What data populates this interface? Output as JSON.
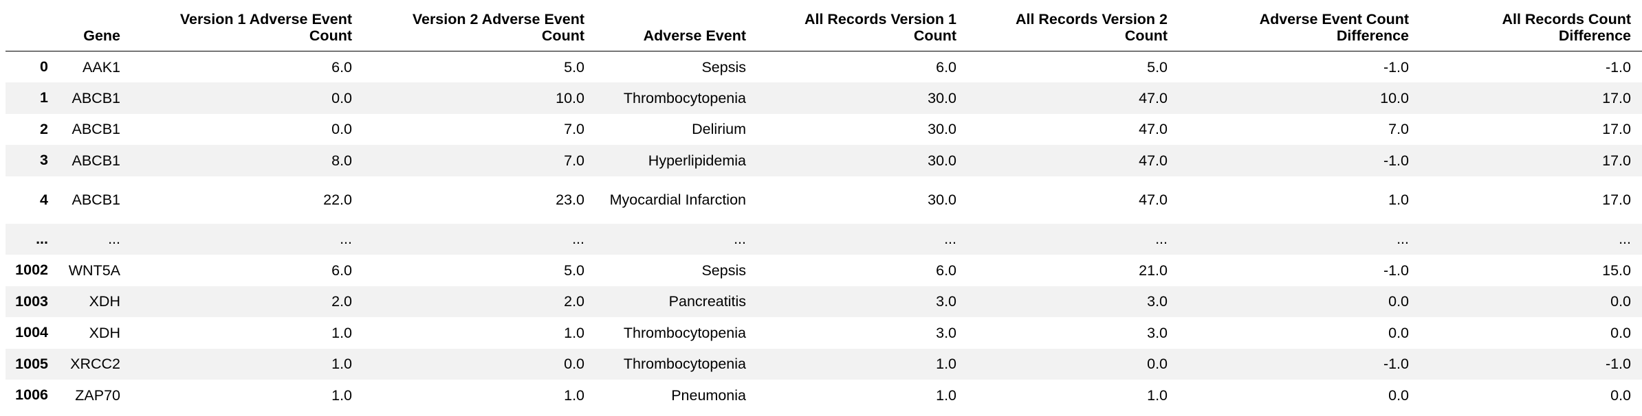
{
  "table": {
    "index_header": "",
    "columns": [
      "Gene",
      "Version 1 Adverse Event Count",
      "Version 2 Adverse Event Count",
      "Adverse Event",
      "All Records Version 1 Count",
      "All Records Version 2 Count",
      "Adverse Event Count Difference",
      "All Records Count Difference"
    ],
    "rows": [
      {
        "index": "0",
        "cells": [
          "AAK1",
          "6.0",
          "5.0",
          "Sepsis",
          "6.0",
          "5.0",
          "-1.0",
          "-1.0"
        ]
      },
      {
        "index": "1",
        "cells": [
          "ABCB1",
          "0.0",
          "10.0",
          "Thrombocytopenia",
          "30.0",
          "47.0",
          "10.0",
          "17.0"
        ]
      },
      {
        "index": "2",
        "cells": [
          "ABCB1",
          "0.0",
          "7.0",
          "Delirium",
          "30.0",
          "47.0",
          "7.0",
          "17.0"
        ]
      },
      {
        "index": "3",
        "cells": [
          "ABCB1",
          "8.0",
          "7.0",
          "Hyperlipidemia",
          "30.0",
          "47.0",
          "-1.0",
          "17.0"
        ]
      },
      {
        "index": "4",
        "cells": [
          "ABCB1",
          "22.0",
          "23.0",
          "Myocardial Infarction",
          "30.0",
          "47.0",
          "1.0",
          "17.0"
        ]
      },
      {
        "index": "...",
        "cells": [
          "...",
          "...",
          "...",
          "...",
          "...",
          "...",
          "...",
          "..."
        ]
      },
      {
        "index": "1002",
        "cells": [
          "WNT5A",
          "6.0",
          "5.0",
          "Sepsis",
          "6.0",
          "21.0",
          "-1.0",
          "15.0"
        ]
      },
      {
        "index": "1003",
        "cells": [
          "XDH",
          "2.0",
          "2.0",
          "Pancreatitis",
          "3.0",
          "3.0",
          "0.0",
          "0.0"
        ]
      },
      {
        "index": "1004",
        "cells": [
          "XDH",
          "1.0",
          "1.0",
          "Thrombocytopenia",
          "3.0",
          "3.0",
          "0.0",
          "0.0"
        ]
      },
      {
        "index": "1005",
        "cells": [
          "XRCC2",
          "1.0",
          "0.0",
          "Thrombocytopenia",
          "1.0",
          "0.0",
          "-1.0",
          "-1.0"
        ]
      },
      {
        "index": "1006",
        "cells": [
          "ZAP70",
          "1.0",
          "1.0",
          "Pneumonia",
          "1.0",
          "1.0",
          "0.0",
          "0.0"
        ]
      }
    ]
  }
}
